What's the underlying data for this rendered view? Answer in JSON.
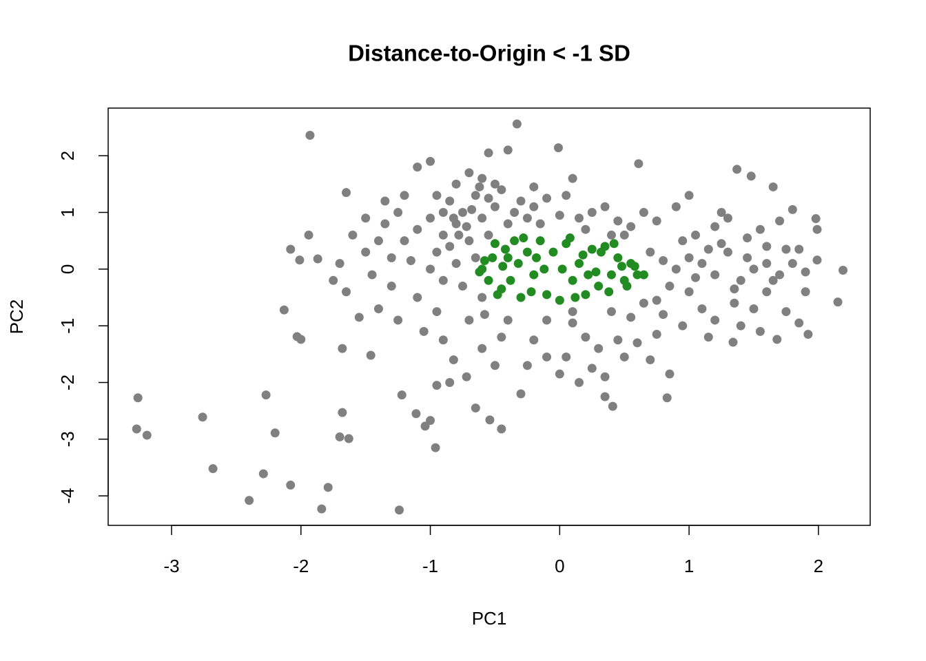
{
  "chart_data": {
    "type": "scatter",
    "title": "Distance-to-Origin < -1 SD",
    "x_label": "PC1",
    "y_label": "PC2",
    "xlim": [
      -3.49,
      2.4
    ],
    "ylim": [
      -4.52,
      2.84
    ],
    "xticks": [
      -3,
      -2,
      -1,
      0,
      1,
      2
    ],
    "yticks": [
      -4,
      -3,
      -2,
      -1,
      0,
      1,
      2
    ],
    "series": [
      {
        "color": "#808080",
        "x": [
          -1.93,
          -0.33,
          -3.26,
          -3.27,
          -3.19,
          -2.76,
          -2.68,
          -2.27,
          -2.2,
          -2.29,
          -2.4,
          -2.08,
          -1.84,
          -1.79,
          -1.24,
          -1.68,
          -1.7,
          -1.63,
          -1.22,
          -1.11,
          -1.04,
          -1.0,
          -0.96,
          -0.54,
          -0.45,
          -2.13,
          -2.03,
          -2.0,
          -2.08,
          -2.01,
          -1.87,
          -1.94,
          2.19,
          2.15,
          1.99,
          1.99,
          1.98,
          -0.01,
          0.61,
          1.37,
          1.48,
          0.83,
          0.41,
          0.35,
          1.92,
          1.68,
          1.34,
          -1.68,
          -1.46,
          -0.8,
          -0.75,
          -0.9,
          -0.7,
          -0.85,
          -0.65,
          -0.95,
          -1.0,
          -1.1,
          -1.2,
          -1.3,
          -1.4,
          -1.5,
          -1.6,
          -1.45,
          -1.3,
          -1.1,
          -0.9,
          -0.8,
          -0.6,
          -0.55,
          -0.5,
          -0.45,
          -0.4,
          -0.35,
          -0.6,
          -0.7,
          -0.8,
          -1.0,
          -1.1,
          -1.2,
          -1.35,
          -1.5,
          -1.65,
          -1.7,
          -1.75,
          -1.65,
          -1.55,
          -1.4,
          -1.25,
          -1.05,
          -0.95,
          -0.7,
          -0.6,
          -0.75,
          -1.0,
          -1.15,
          -0.65,
          -0.85,
          -0.9,
          -0.72,
          -0.78,
          -0.68,
          -0.82,
          -0.95,
          -0.55,
          -0.5,
          -0.62,
          -1.25,
          -1.35,
          -0.58,
          -0.9,
          -0.82,
          -0.72,
          -0.6,
          -0.45,
          -0.5,
          -0.85,
          -0.65,
          -0.95,
          -0.3,
          -0.25,
          -0.2,
          -0.15,
          -0.4,
          -0.55,
          -0.2,
          -0.1,
          0.0,
          0.05,
          0.1,
          0.15,
          0.2,
          0.25,
          0.35,
          0.45,
          0.55,
          0.65,
          0.5,
          0.4,
          -0.4,
          -0.2,
          -0.1,
          0.0,
          0.1,
          0.05,
          0.2,
          0.25,
          0.3,
          0.35,
          0.45,
          0.5,
          0.55,
          0.6,
          0.65,
          -0.25,
          -0.3,
          0.15,
          0.75,
          0.7,
          0.85,
          0.8,
          0.4,
          0.1,
          -0.1,
          0.9,
          1.0,
          1.1,
          1.2,
          1.3,
          1.4,
          1.5,
          1.6,
          1.7,
          1.8,
          1.9,
          1.0,
          1.1,
          1.2,
          1.35,
          1.5,
          1.6,
          1.75,
          1.85,
          0.95,
          1.05,
          1.2,
          1.3,
          1.45,
          1.55,
          1.7,
          1.8,
          1.65,
          0.8,
          0.85,
          0.7,
          0.75,
          1.25,
          1.15,
          1.4,
          1.0,
          0.9,
          0.75,
          0.95,
          1.55,
          1.65,
          1.85,
          1.9,
          1.45,
          1.25,
          1.05,
          1.15,
          1.35,
          1.75,
          1.6
        ],
        "y": [
          2.36,
          2.56,
          -2.27,
          -2.82,
          -2.93,
          -2.61,
          -3.52,
          -2.22,
          -2.89,
          -3.61,
          -4.08,
          -3.81,
          -4.23,
          -3.85,
          -4.25,
          -2.53,
          -2.96,
          -2.99,
          -2.22,
          -2.55,
          -2.77,
          -2.67,
          -3.15,
          -2.66,
          -2.82,
          -0.72,
          -1.19,
          -1.24,
          0.35,
          0.16,
          0.18,
          0.6,
          -0.02,
          -0.58,
          0.16,
          0.7,
          0.89,
          2.14,
          1.86,
          1.76,
          1.64,
          -2.27,
          -2.42,
          -2.25,
          -1.15,
          -1.24,
          -1.29,
          -1.4,
          -1.52,
          0.8,
          1.0,
          0.6,
          0.5,
          1.2,
          1.3,
          0.3,
          0.9,
          0.7,
          0.5,
          0.2,
          0.5,
          0.3,
          0.6,
          -0.1,
          -0.3,
          -0.5,
          -0.2,
          0.1,
          0.9,
          0.6,
          1.1,
          1.4,
          0.8,
          1.0,
          1.6,
          1.7,
          1.5,
          1.9,
          1.8,
          1.3,
          1.2,
          0.9,
          1.35,
          0.1,
          -0.2,
          -0.4,
          -0.85,
          -0.7,
          -0.9,
          -1.1,
          -0.75,
          -0.9,
          -0.5,
          -0.3,
          0.0,
          0.15,
          0.2,
          0.4,
          1.0,
          0.75,
          0.6,
          1.05,
          0.9,
          1.3,
          1.25,
          1.5,
          1.45,
          1.0,
          0.8,
          -0.8,
          -1.25,
          -1.6,
          -1.9,
          -1.4,
          -1.2,
          -1.7,
          -2.0,
          -2.45,
          -2.05,
          1.2,
          0.9,
          1.1,
          0.8,
          2.1,
          2.05,
          1.45,
          1.25,
          0.95,
          1.3,
          1.6,
          0.9,
          0.7,
          1.0,
          1.1,
          0.85,
          0.75,
          1.0,
          0.6,
          0.6,
          -0.9,
          -1.25,
          -1.55,
          -1.85,
          -0.95,
          -1.55,
          -1.2,
          -1.75,
          -1.4,
          -1.9,
          -1.25,
          -1.55,
          -0.85,
          -1.3,
          -0.6,
          -1.7,
          -2.2,
          -2.0,
          -1.15,
          -1.6,
          -1.85,
          -0.8,
          -0.75,
          -0.75,
          -0.9,
          0.0,
          0.2,
          0.1,
          -0.1,
          0.3,
          -0.2,
          0.0,
          0.4,
          -0.1,
          0.1,
          -0.05,
          -0.4,
          -0.7,
          -0.9,
          -0.6,
          -0.7,
          -0.4,
          -0.75,
          -0.95,
          0.5,
          0.6,
          0.75,
          0.9,
          0.55,
          0.7,
          0.85,
          1.05,
          1.45,
          0.15,
          -0.3,
          0.3,
          -0.55,
          1.0,
          -1.2,
          -1.0,
          1.3,
          1.1,
          0.85,
          -1.0,
          -1.1,
          -0.2,
          0.35,
          -0.4,
          0.2,
          0.45,
          -0.15,
          0.35,
          -0.35,
          0.35,
          0.1
        ]
      },
      {
        "color": "#228b22",
        "x": [
          -0.6,
          -0.55,
          -0.5,
          -0.45,
          -0.4,
          -0.35,
          -0.3,
          -0.25,
          -0.2,
          -0.15,
          -0.1,
          -0.05,
          0.0,
          0.05,
          0.1,
          0.15,
          0.2,
          0.25,
          0.3,
          0.35,
          0.4,
          0.45,
          0.5,
          0.55,
          0.6,
          0.65,
          -0.62,
          -0.52,
          -0.48,
          -0.42,
          -0.38,
          -0.32,
          -0.28,
          -0.22,
          -0.18,
          -0.12,
          0.02,
          0.08,
          0.12,
          0.18,
          0.22,
          0.28,
          0.32,
          0.38,
          0.42,
          0.48,
          0.52,
          0.58,
          -0.58,
          -0.44
        ],
        "y": [
          0.0,
          -0.2,
          0.45,
          -0.35,
          0.2,
          0.5,
          -0.5,
          0.3,
          -0.1,
          0.5,
          -0.45,
          0.3,
          -0.55,
          0.45,
          -0.2,
          0.1,
          -0.45,
          0.35,
          -0.3,
          0.4,
          -0.1,
          0.2,
          -0.2,
          0.1,
          -0.1,
          -0.1,
          -0.05,
          0.2,
          -0.45,
          0.35,
          -0.2,
          0.1,
          0.55,
          -0.4,
          0.2,
          0.0,
          0.0,
          0.55,
          -0.5,
          0.25,
          -0.1,
          -0.05,
          0.3,
          -0.4,
          0.45,
          0.05,
          -0.3,
          0.05,
          0.15,
          0.05
        ]
      }
    ]
  }
}
